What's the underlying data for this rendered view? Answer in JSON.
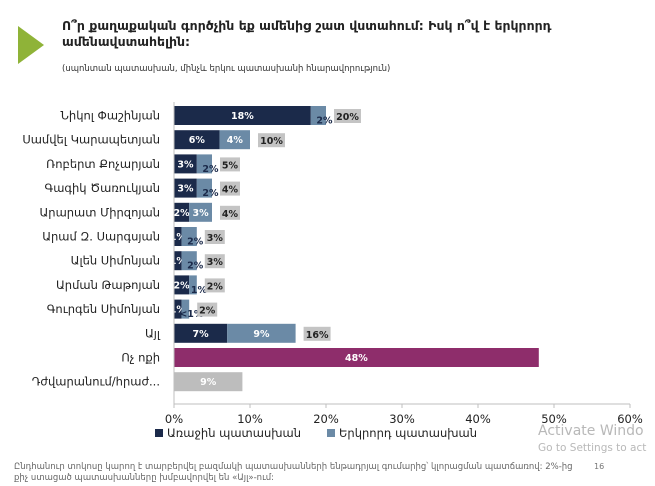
{
  "title": "Ո՞ր քաղաքական գործչին եք ամենից շատ վստահում: Իսկ ո՞վ է երկրորդ ամենավստահելին:",
  "subtitle": "(սպոնտան պատասխան, մինչև երկու պատասխանի հնարավորություն)",
  "colors": {
    "first": "#1b2a4a",
    "second": "#6b8aa6",
    "total_box": "#c4c4c4",
    "none": "#8e2d6b",
    "difficult": "#bdbdbd",
    "accent": "#8fb338"
  },
  "chart_data": {
    "type": "bar",
    "orientation": "horizontal",
    "stacked": true,
    "categories": [
      "Նիկոլ Փաշինյան",
      "Սամվել Կարապետյան",
      "Ռոբերտ Քոչարյան",
      "Գագիկ Ծառուկյան",
      "Արարատ Միրզոյան",
      "Արամ Զ. Սարգսյան",
      "Ալեն Սիմոնյան",
      "Արման Թաթոյան",
      "Գուրգեն Սիմոնյան",
      "Այլ",
      "Ոչ ոքի",
      "Դժվարանում/հրաժ..."
    ],
    "series": [
      {
        "name": "Առաջին պատասխան",
        "values": [
          18,
          6,
          3,
          3,
          2,
          1,
          1,
          2,
          1,
          7,
          48,
          9
        ],
        "labels": [
          "18%",
          "6%",
          "3%",
          "3%",
          "2%",
          "1%",
          "1%",
          "2%",
          "1%",
          "7%",
          "48%",
          "9%"
        ]
      },
      {
        "name": "Երկրորդ պատասխան",
        "values": [
          2,
          4,
          2,
          2,
          3,
          2,
          2,
          1,
          1,
          9,
          null,
          null
        ],
        "labels": [
          "2%",
          "4%",
          "2%",
          "2%",
          "3%",
          "2%",
          "2%",
          "1%",
          "<1%",
          "9%",
          "",
          ""
        ]
      }
    ],
    "totals": [
      "20%",
      "10%",
      "5%",
      "4%",
      "4%",
      "3%",
      "3%",
      "2%",
      "2%",
      "16%",
      "",
      ""
    ],
    "xlim": [
      0,
      60
    ],
    "xticks": [
      "0%",
      "10%",
      "20%",
      "30%",
      "40%",
      "50%",
      "60%"
    ],
    "legend_position": "bottom"
  },
  "footer": "Ընդհանուր տոկոսը կարող է տարբերվել բազմակի պատասխանների ենթադրյալ գումարից՝ կլորացման պատճառով: 2%-ից քիչ ստացած պատասխանները խմբավորվել են «Այլ»-ում:",
  "page_number": "16",
  "watermark": {
    "line1": "Activate Windo",
    "line2": "Go to Settings to act"
  }
}
